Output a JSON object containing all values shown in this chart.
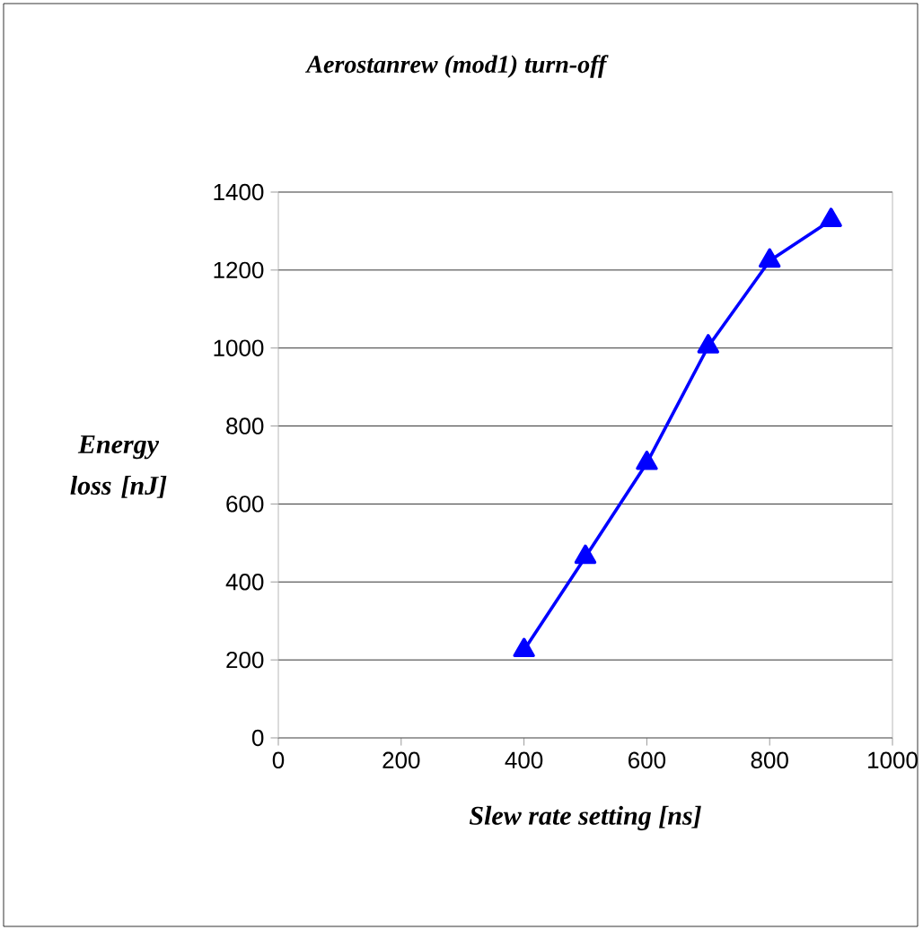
{
  "chart_data": {
    "type": "line",
    "title": "Aerostanrew (mod1) turn-off",
    "xlabel": "Slew rate setting [ns]",
    "ylabel": "Energy loss [nJ]",
    "x": [
      400,
      500,
      600,
      700,
      800,
      900
    ],
    "series": [
      {
        "color": "#0000ff",
        "values": [
          225,
          464,
          705,
          1004,
          1224,
          1328
        ]
      }
    ],
    "xlim": [
      0,
      1000
    ],
    "xticks": [
      0,
      200,
      400,
      600,
      800,
      1000
    ],
    "ylim": [
      0,
      1400
    ],
    "yticks": [
      0,
      200,
      400,
      600,
      800,
      1000,
      1200,
      1400
    ],
    "grid": "y",
    "marker": "triangle",
    "line_style": "solid"
  }
}
